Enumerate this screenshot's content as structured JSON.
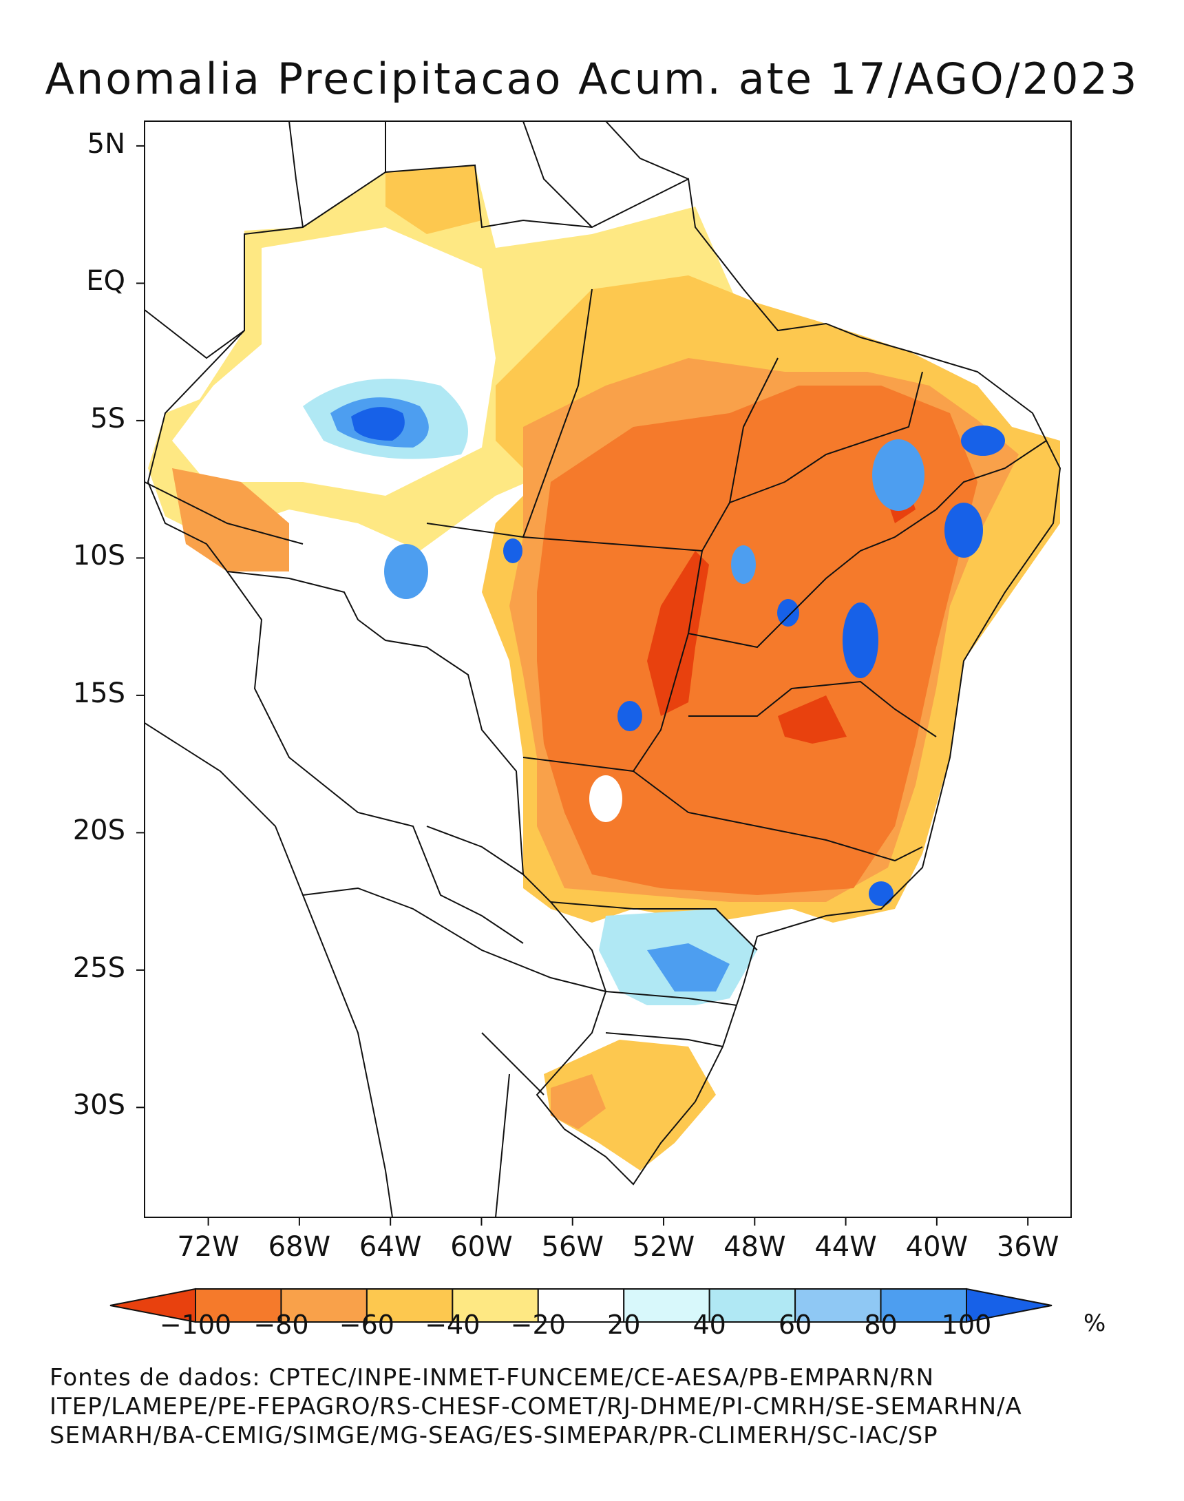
{
  "title": "Anomalia Precipitacao Acum. ate 17/AGO/2023",
  "map": {
    "lat_range": [
      -34,
      5.9
    ],
    "lon_range": [
      -74.8,
      -34.1
    ],
    "lat_ticks": [
      "5N",
      "EQ",
      "5S",
      "10S",
      "15S",
      "20S",
      "25S",
      "30S"
    ],
    "lat_tick_values": [
      5,
      0,
      -5,
      -10,
      -15,
      -20,
      -25,
      -30
    ],
    "lon_ticks": [
      "72W",
      "68W",
      "64W",
      "60W",
      "56W",
      "52W",
      "48W",
      "44W",
      "40W",
      "36W"
    ],
    "lon_tick_values": [
      -72,
      -68,
      -64,
      -60,
      -56,
      -52,
      -48,
      -44,
      -40,
      -36
    ]
  },
  "colorbar": {
    "labels": [
      "-100",
      "-80",
      "-60",
      "-40",
      "-20",
      "20",
      "40",
      "60",
      "80",
      "100"
    ],
    "colors": [
      "#e8410e",
      "#f57a2b",
      "#f9a14a",
      "#fdc84f",
      "#fee883",
      "#ffffff",
      "#d8f8fb",
      "#b0e8f4",
      "#8fc8f4",
      "#4d9ef0",
      "#1761e8"
    ],
    "unit": "%"
  },
  "sources": [
    "Fontes de dados: CPTEC/INPE-INMET-FUNCEME/CE-AESA/PB-EMPARN/RN",
    "ITEP/LAMEPE/PE-FEPAGRO/RS-CHESF-COMET/RJ-DHME/PI-CMRH/SE-SEMARHN/A",
    "SEMARH/BA-CEMIG/SIMGE/MG-SEAG/ES-SIMEPAR/PR-CLIMERH/SC-IAC/SP"
  ]
}
